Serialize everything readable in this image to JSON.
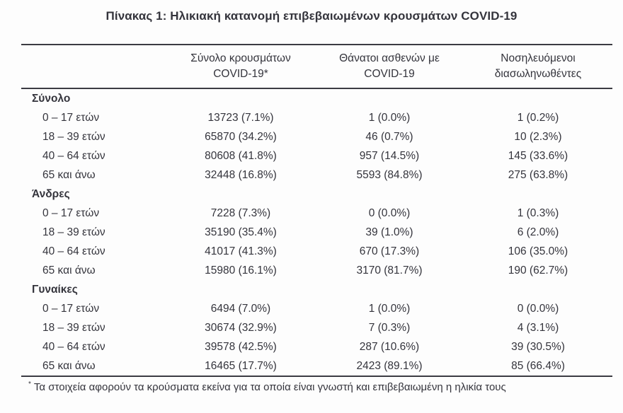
{
  "page": {
    "title": "Πίνακας 1: Ηλικιακή κατανομή επιβεβαιωμένων κρουσμάτων COVID-19",
    "footnote_marker": "*",
    "footnote": "Τα στοιχεία αφορούν τα κρούσματα εκείνα για τα οποία είναι γνωστή και επιβεβαιωμένη η ηλικία τους"
  },
  "table": {
    "columns": [
      {
        "line1": "Σύνολο κρουσμάτων",
        "line2": "COVID-19*"
      },
      {
        "line1": "Θάνατοι ασθενών με",
        "line2": "COVID-19"
      },
      {
        "line1": "Νοσηλευόμενοι",
        "line2": "διασωληνωθέντες"
      }
    ],
    "sections": [
      {
        "label": "Σύνολο",
        "rows": [
          {
            "label": "0 – 17 ετών",
            "cases": "13723 (7.1%)",
            "deaths": "1 (0.0%)",
            "intubated": "1 (0.2%)"
          },
          {
            "label": "18 – 39 ετών",
            "cases": "65870 (34.2%)",
            "deaths": "46 (0.7%)",
            "intubated": "10 (2.3%)"
          },
          {
            "label": "40 – 64 ετών",
            "cases": "80608 (41.8%)",
            "deaths": "957 (14.5%)",
            "intubated": "145 (33.6%)"
          },
          {
            "label": "65 και άνω",
            "cases": "32448 (16.8%)",
            "deaths": "5593 (84.8%)",
            "intubated": "275 (63.8%)"
          }
        ]
      },
      {
        "label": "Άνδρες",
        "rows": [
          {
            "label": "0 – 17 ετών",
            "cases": "7228 (7.3%)",
            "deaths": "0 (0.0%)",
            "intubated": "1 (0.3%)"
          },
          {
            "label": "18 – 39 ετών",
            "cases": "35190 (35.4%)",
            "deaths": "39 (1.0%)",
            "intubated": "6 (2.0%)"
          },
          {
            "label": "40 – 64 ετών",
            "cases": "41017 (41.3%)",
            "deaths": "670 (17.3%)",
            "intubated": "106 (35.0%)"
          },
          {
            "label": "65 και άνω",
            "cases": "15980 (16.1%)",
            "deaths": "3170 (81.7%)",
            "intubated": "190 (62.7%)"
          }
        ]
      },
      {
        "label": "Γυναίκες",
        "rows": [
          {
            "label": "0 – 17 ετών",
            "cases": "6494 (7.0%)",
            "deaths": "1 (0.0%)",
            "intubated": "0 (0.0%)"
          },
          {
            "label": "18 – 39 ετών",
            "cases": "30674 (32.9%)",
            "deaths": "7 (0.3%)",
            "intubated": "4 (3.1%)"
          },
          {
            "label": "40 – 64 ετών",
            "cases": "39578 (42.5%)",
            "deaths": "287 (10.6%)",
            "intubated": "39 (30.5%)"
          },
          {
            "label": "65 και άνω",
            "cases": "16465 (17.7%)",
            "deaths": "2423 (89.1%)",
            "intubated": "85 (66.4%)"
          }
        ]
      }
    ]
  },
  "colors": {
    "text": "#34343c",
    "rule": "#3b3b42",
    "background": "#fdfdfd"
  }
}
